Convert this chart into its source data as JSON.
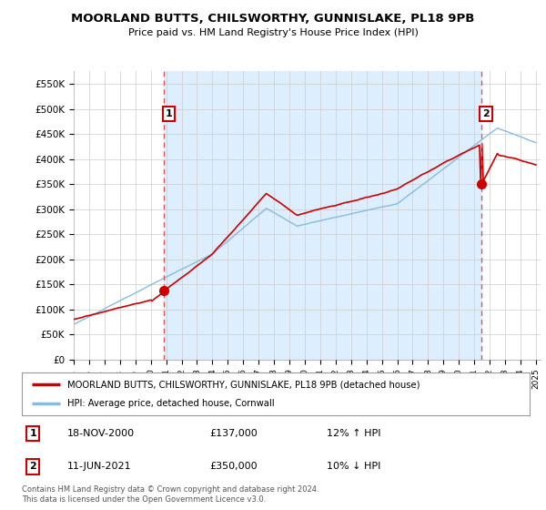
{
  "title": "MOORLAND BUTTS, CHILSWORTHY, GUNNISLAKE, PL18 9PB",
  "subtitle": "Price paid vs. HM Land Registry's House Price Index (HPI)",
  "ylim": [
    0,
    575000
  ],
  "yticks": [
    0,
    50000,
    100000,
    150000,
    200000,
    250000,
    300000,
    350000,
    400000,
    450000,
    500000,
    550000
  ],
  "ytick_labels": [
    "£0",
    "£50K",
    "£100K",
    "£150K",
    "£200K",
    "£250K",
    "£300K",
    "£350K",
    "£400K",
    "£450K",
    "£500K",
    "£550K"
  ],
  "t1_year": 2000.875,
  "t2_year": 2021.458,
  "t1_value": 137000,
  "t2_value": 350000,
  "line_color_red": "#cc0000",
  "line_color_blue": "#88bbdd",
  "vline_color": "#dd5555",
  "grid_color": "#cccccc",
  "shade_color": "#ddeeff",
  "background_color": "#ffffff",
  "legend_label_red": "MOORLAND BUTTS, CHILSWORTHY, GUNNISLAKE, PL18 9PB (detached house)",
  "legend_label_blue": "HPI: Average price, detached house, Cornwall",
  "footnote": "Contains HM Land Registry data © Crown copyright and database right 2024.\nThis data is licensed under the Open Government Licence v3.0.",
  "table_rows": [
    {
      "num": "1",
      "date": "18-NOV-2000",
      "price": "£137,000",
      "hpi": "12% ↑ HPI"
    },
    {
      "num": "2",
      "date": "11-JUN-2021",
      "price": "£350,000",
      "hpi": "10% ↓ HPI"
    }
  ]
}
